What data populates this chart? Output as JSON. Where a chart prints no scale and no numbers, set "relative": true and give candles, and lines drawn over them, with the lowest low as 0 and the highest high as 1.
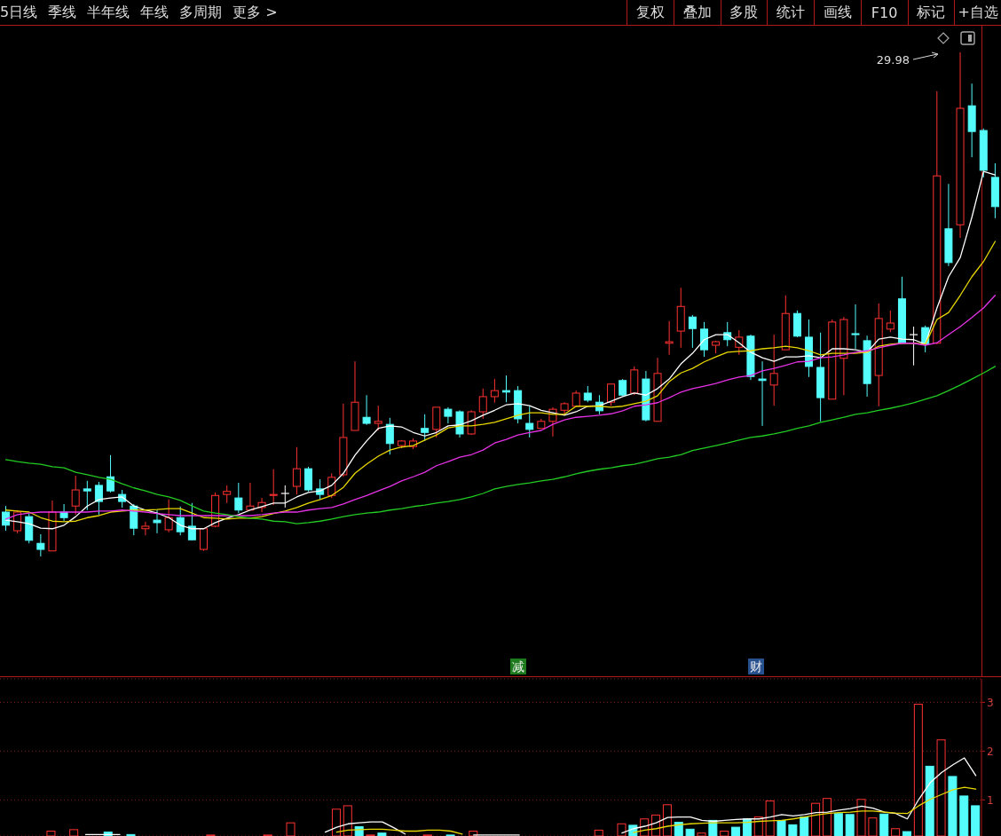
{
  "chart_data": [
    {
      "type": "other",
      "annotations": [
        "5日线",
        "季线",
        "半年线",
        "年线",
        "多周期",
        "更多 >",
        "复权",
        "叠加",
        "多股",
        "统计",
        "画线",
        "F10",
        "标记",
        "+自选"
      ]
    },
    {
      "type": "candlestick",
      "relative": true,
      "categories": [
        null,
        null,
        null,
        null,
        null,
        null,
        null,
        null,
        null,
        null,
        null,
        null,
        null,
        null,
        null,
        null,
        null,
        null,
        null,
        null,
        null,
        null,
        null,
        null,
        null,
        null,
        null,
        null,
        null,
        null,
        null,
        null,
        null,
        null,
        null,
        null,
        null,
        null,
        null,
        null,
        null,
        null,
        null,
        null,
        null,
        null,
        null,
        null,
        null,
        null,
        null,
        null,
        null,
        null,
        null,
        null,
        null,
        null,
        null,
        null,
        null,
        null,
        null,
        null,
        null,
        null,
        null,
        null,
        null,
        null,
        null,
        null,
        null,
        null,
        null,
        null,
        null,
        null,
        null,
        null,
        null,
        null,
        null,
        null,
        null,
        null
      ],
      "ohlc": [
        [
          0.088,
          0.1,
          0.051,
          0.062
        ],
        [
          0.051,
          0.092,
          0.046,
          0.088
        ],
        [
          0.079,
          0.085,
          0.026,
          0.032
        ],
        [
          0.026,
          0.044,
          0,
          0.014
        ],
        [
          0.011,
          0.111,
          0.011,
          0.088
        ],
        [
          0.088,
          0.104,
          0.07,
          0.077
        ],
        [
          0.1,
          0.16,
          0.083,
          0.132
        ],
        [
          0.134,
          0.15,
          0.092,
          0.13
        ],
        [
          0.141,
          0.148,
          0.083,
          0.109
        ],
        [
          0.158,
          0.201,
          0.127,
          0.13
        ],
        [
          0.123,
          0.132,
          0.097,
          0.109
        ],
        [
          0.1,
          0.104,
          0.042,
          0.056
        ],
        [
          0.055,
          0.069,
          0.042,
          0.06
        ],
        [
          0.072,
          0.092,
          0.046,
          0.067
        ],
        [
          0.053,
          0.113,
          0.048,
          0.077
        ],
        [
          0.077,
          0.099,
          0.042,
          0.049
        ],
        [
          0.06,
          0.106,
          0.032,
          0.033
        ],
        [
          0.014,
          0.055,
          0.011,
          0.055
        ],
        [
          0.06,
          0.127,
          0.058,
          0.121
        ],
        [
          0.123,
          0.141,
          0.106,
          0.129
        ],
        [
          0.116,
          0.146,
          0.086,
          0.092
        ],
        [
          0.092,
          0.146,
          0.092,
          0.1
        ],
        [
          0.097,
          0.116,
          0.088,
          0.107
        ],
        [
          0.121,
          0.173,
          0.102,
          0.123
        ],
        [
          0.125,
          0.141,
          0.097,
          0.125
        ],
        [
          0.139,
          0.217,
          0.123,
          0.174
        ],
        [
          0.174,
          0.178,
          0.129,
          0.132
        ],
        [
          0.134,
          0.153,
          0.113,
          0.123
        ],
        [
          0.121,
          0.165,
          0.116,
          0.157
        ],
        [
          0.162,
          0.303,
          0.158,
          0.236
        ],
        [
          0.25,
          0.387,
          0.25,
          0.306
        ],
        [
          0.276,
          0.32,
          0.261,
          0.264
        ],
        [
          0.264,
          0.299,
          0.25,
          0.268
        ],
        [
          0.262,
          0.275,
          0.202,
          0.224
        ],
        [
          0.22,
          0.231,
          0.215,
          0.229
        ],
        [
          0.218,
          0.234,
          0.213,
          0.229
        ],
        [
          0.254,
          0.282,
          0.229,
          0.246
        ],
        [
          0.252,
          0.296,
          0.236,
          0.296
        ],
        [
          0.292,
          0.296,
          0.264,
          0.278
        ],
        [
          0.287,
          0.29,
          0.236,
          0.243
        ],
        [
          0.243,
          0.29,
          0.241,
          0.287
        ],
        [
          0.287,
          0.333,
          0.273,
          0.317
        ],
        [
          0.317,
          0.352,
          0.305,
          0.329
        ],
        [
          0.329,
          0.359,
          0.306,
          0.326
        ],
        [
          0.329,
          0.338,
          0.264,
          0.273
        ],
        [
          0.264,
          0.298,
          0.236,
          0.252
        ],
        [
          0.254,
          0.273,
          0.254,
          0.268
        ],
        [
          0.268,
          0.296,
          0.238,
          0.292
        ],
        [
          0.29,
          0.306,
          0.28,
          0.303
        ],
        [
          0.298,
          0.329,
          0.298,
          0.324
        ],
        [
          0.324,
          0.338,
          0.306,
          0.31
        ],
        [
          0.306,
          0.32,
          0.282,
          0.289
        ],
        [
          0.306,
          0.342,
          0.299,
          0.342
        ],
        [
          0.349,
          0.352,
          0.319,
          0.32
        ],
        [
          0.324,
          0.377,
          0.32,
          0.37
        ],
        [
          0.352,
          0.368,
          0.268,
          0.271
        ],
        [
          0.268,
          0.394,
          0.268,
          0.363
        ],
        [
          0.423,
          0.467,
          0.4,
          0.426
        ],
        [
          0.447,
          0.533,
          0.414,
          0.496
        ],
        [
          0.475,
          0.479,
          0.414,
          0.452
        ],
        [
          0.451,
          0.465,
          0.396,
          0.41
        ],
        [
          0.419,
          0.428,
          0.403,
          0.426
        ],
        [
          0.444,
          0.465,
          0.417,
          0.43
        ],
        [
          0.415,
          0.449,
          0.4,
          0.435
        ],
        [
          0.437,
          0.44,
          0.35,
          0.357
        ],
        [
          0.352,
          0.387,
          0.259,
          0.349
        ],
        [
          0.34,
          0.44,
          0.299,
          0.363
        ],
        [
          0.41,
          0.518,
          0.41,
          0.482
        ],
        [
          0.482,
          0.488,
          0.435,
          0.437
        ],
        [
          0.435,
          0.47,
          0.356,
          0.377
        ],
        [
          0.375,
          0.444,
          0.268,
          0.315
        ],
        [
          0.312,
          0.47,
          0.312,
          0.465
        ],
        [
          0.393,
          0.475,
          0.32,
          0.47
        ],
        [
          0.442,
          0.5,
          0.412,
          0.44
        ],
        [
          0.428,
          0.438,
          0.317,
          0.343
        ],
        [
          0.359,
          0.502,
          0.298,
          0.472
        ],
        [
          0.451,
          0.488,
          0.445,
          0.463
        ],
        [
          0.511,
          0.555,
          0.423,
          0.423
        ],
        [
          0.44,
          0.456,
          0.379,
          0.44
        ],
        [
          0.454,
          0.458,
          0.405,
          0.421
        ],
        [
          0.423,
          0.923,
          0.421,
          0.755
        ],
        [
          0.65,
          0.739,
          0.576,
          0.583
        ],
        [
          0.658,
          1,
          0.632,
          0.889
        ],
        [
          0.894,
          0.938,
          0.792,
          0.843
        ],
        [
          0.845,
          0.849,
          0.752,
          0.766
        ],
        [
          0.752,
          0.78,
          0.671,
          0.694
        ]
      ],
      "colors": [
        "#54fcfc",
        "#ff3232",
        "#54fcfc",
        "#54fcfc",
        "#ff3232",
        "#54fcfc",
        "#ff3232",
        "#54fcfc",
        "#54fcfc",
        "#54fcfc",
        "#54fcfc",
        "#54fcfc",
        "#ff3232",
        "#54fcfc",
        "#ff3232",
        "#54fcfc",
        "#54fcfc",
        "#ff3232",
        "#ff3232",
        "#ff3232",
        "#54fcfc",
        "#ff3232",
        "#ff3232",
        "#ff3232",
        "#ffffff",
        "#ff3232",
        "#54fcfc",
        "#54fcfc",
        "#ff3232",
        "#ff3232",
        "#ff3232",
        "#54fcfc",
        "#ff3232",
        "#54fcfc",
        "#ff3232",
        "#ff3232",
        "#54fcfc",
        "#ff3232",
        "#54fcfc",
        "#54fcfc",
        "#ff3232",
        "#ff3232",
        "#ff3232",
        "#54fcfc",
        "#54fcfc",
        "#54fcfc",
        "#ff3232",
        "#ff3232",
        "#ff3232",
        "#ff3232",
        "#54fcfc",
        "#54fcfc",
        "#ff3232",
        "#54fcfc",
        "#ff3232",
        "#54fcfc",
        "#ff3232",
        "#ff3232",
        "#ff3232",
        "#54fcfc",
        "#54fcfc",
        "#ff3232",
        "#54fcfc",
        "#ff3232",
        "#54fcfc",
        "#54fcfc",
        "#ff3232",
        "#ff3232",
        "#54fcfc",
        "#54fcfc",
        "#54fcfc",
        "#ff3232",
        "#ff3232",
        "#54fcfc",
        "#54fcfc",
        "#ff3232",
        "#ff3232",
        "#54fcfc",
        "#ffffff",
        "#54fcfc",
        "#ff3232",
        "#54fcfc",
        "#ff3232",
        "#54fcfc",
        "#54fcfc",
        "#54fcfc"
      ],
      "series": [
        {
          "type": "line",
          "color": "#ffffff",
          "values": [
            0.072,
            0.069,
            0.065,
            0.056,
            0.055,
            0.062,
            0.079,
            0.1,
            0.113,
            0.116,
            0.118,
            0.1,
            0.092,
            0.086,
            0.077,
            0.062,
            0.055,
            0.055,
            0.067,
            0.076,
            0.083,
            0.092,
            0.099,
            0.106,
            0.106,
            0.118,
            0.127,
            0.13,
            0.141,
            0.165,
            0.201,
            0.229,
            0.254,
            0.259,
            0.257,
            0.246,
            0.239,
            0.246,
            0.259,
            0.261,
            0.269,
            0.28,
            0.29,
            0.301,
            0.303,
            0.299,
            0.29,
            0.285,
            0.28,
            0.287,
            0.298,
            0.299,
            0.308,
            0.317,
            0.324,
            0.32,
            0.333,
            0.352,
            0.382,
            0.403,
            0.43,
            0.44,
            0.44,
            0.424,
            0.405,
            0.394,
            0.387,
            0.396,
            0.396,
            0.398,
            0.394,
            0.412,
            0.412,
            0.41,
            0.405,
            0.431,
            0.435,
            0.431,
            0.43,
            0.421,
            0.493,
            0.555,
            0.593,
            0.673,
            0.764,
            0.757
          ]
        },
        {
          "type": "line",
          "color": "#e8d800",
          "values": [
            0.092,
            0.09,
            0.088,
            0.077,
            0.07,
            0.069,
            0.07,
            0.077,
            0.081,
            0.088,
            0.09,
            0.092,
            0.092,
            0.093,
            0.095,
            0.095,
            0.086,
            0.077,
            0.076,
            0.074,
            0.076,
            0.076,
            0.079,
            0.085,
            0.09,
            0.097,
            0.106,
            0.113,
            0.121,
            0.137,
            0.165,
            0.183,
            0.199,
            0.211,
            0.217,
            0.22,
            0.231,
            0.241,
            0.255,
            0.259,
            0.259,
            0.262,
            0.266,
            0.273,
            0.28,
            0.285,
            0.285,
            0.282,
            0.282,
            0.298,
            0.298,
            0.298,
            0.296,
            0.298,
            0.303,
            0.308,
            0.319,
            0.347,
            0.364,
            0.373,
            0.386,
            0.396,
            0.405,
            0.407,
            0.408,
            0.412,
            0.414,
            0.417,
            0.414,
            0.408,
            0.4,
            0.403,
            0.403,
            0.403,
            0.405,
            0.417,
            0.421,
            0.423,
            0.423,
            0.421,
            0.47,
            0.484,
            0.518,
            0.555,
            0.585,
            0.625
          ]
        },
        {
          "type": "line",
          "color": "#e632e6",
          "values": [
            0.074,
            0.083,
            0.086,
            0.088,
            0.088,
            0.088,
            0.088,
            0.088,
            0.09,
            0.09,
            0.092,
            0.09,
            0.088,
            0.085,
            0.083,
            0.081,
            0.081,
            0.081,
            0.081,
            0.081,
            0.081,
            0.081,
            0.083,
            0.086,
            0.088,
            0.088,
            0.092,
            0.095,
            0.097,
            0.104,
            0.113,
            0.121,
            0.13,
            0.139,
            0.15,
            0.158,
            0.167,
            0.18,
            0.188,
            0.197,
            0.202,
            0.211,
            0.225,
            0.232,
            0.241,
            0.246,
            0.25,
            0.262,
            0.271,
            0.276,
            0.278,
            0.28,
            0.283,
            0.289,
            0.298,
            0.301,
            0.305,
            0.315,
            0.326,
            0.333,
            0.338,
            0.343,
            0.35,
            0.356,
            0.359,
            0.368,
            0.373,
            0.379,
            0.386,
            0.387,
            0.394,
            0.396,
            0.4,
            0.405,
            0.408,
            0.414,
            0.419,
            0.423,
            0.423,
            0.419,
            0.424,
            0.44,
            0.456,
            0.474,
            0.493,
            0.518
          ]
        },
        {
          "type": "line",
          "color": "#22cc22",
          "values": [
            0.192,
            0.188,
            0.185,
            0.183,
            0.178,
            0.176,
            0.167,
            0.162,
            0.157,
            0.153,
            0.144,
            0.136,
            0.13,
            0.123,
            0.118,
            0.111,
            0.1,
            0.09,
            0.086,
            0.083,
            0.079,
            0.076,
            0.074,
            0.07,
            0.069,
            0.065,
            0.067,
            0.07,
            0.074,
            0.079,
            0.083,
            0.086,
            0.088,
            0.092,
            0.095,
            0.099,
            0.102,
            0.106,
            0.109,
            0.113,
            0.118,
            0.125,
            0.134,
            0.139,
            0.143,
            0.146,
            0.15,
            0.153,
            0.158,
            0.164,
            0.169,
            0.173,
            0.176,
            0.18,
            0.183,
            0.188,
            0.194,
            0.197,
            0.202,
            0.21,
            0.215,
            0.22,
            0.225,
            0.231,
            0.236,
            0.239,
            0.243,
            0.248,
            0.254,
            0.259,
            0.266,
            0.271,
            0.276,
            0.282,
            0.285,
            0.29,
            0.294,
            0.299,
            0.305,
            0.312,
            0.319,
            0.329,
            0.34,
            0.352,
            0.364,
            0.377
          ]
        }
      ],
      "annotations": [
        "29.98",
        "减",
        "财"
      ]
    },
    {
      "type": "bar",
      "grid": "y",
      "ylim": [
        0.26,
        3.48
      ],
      "yticks": [
        1,
        2,
        3
      ],
      "categories": [
        null,
        null,
        null,
        null,
        null,
        null,
        null,
        null,
        null,
        null,
        null,
        null,
        null,
        null,
        null,
        null,
        null,
        null,
        null,
        null,
        null,
        null,
        null,
        null,
        null,
        null,
        null,
        null,
        null,
        null,
        null,
        null,
        null,
        null,
        null,
        null,
        null,
        null,
        null,
        null,
        null,
        null,
        null,
        null,
        null,
        null,
        null,
        null,
        null,
        null,
        null,
        null,
        null,
        null,
        null,
        null,
        null,
        null,
        null,
        null,
        null,
        null,
        null,
        null,
        null,
        null,
        null,
        null,
        null,
        null,
        null,
        null,
        null,
        null,
        null,
        null,
        null,
        null,
        null,
        null,
        null,
        null,
        null,
        null,
        null,
        null
      ],
      "series": [
        {
          "values": [
            null,
            null,
            null,
            null,
            0.36,
            null,
            0.39,
            null,
            null,
            0.34,
            null,
            0.29,
            null,
            null,
            null,
            null,
            null,
            null,
            0.28,
            null,
            null,
            null,
            null,
            0.28,
            null,
            0.53,
            null,
            null,
            null,
            0.81,
            0.88,
            0.45,
            0.28,
            0.32,
            null,
            null,
            null,
            0.28,
            null,
            0.28,
            null,
            0.36,
            null,
            null,
            null,
            null,
            null,
            null,
            null,
            null,
            null,
            null,
            0.38,
            null,
            0.51,
            0.48,
            0.61,
            0.69,
            0.9,
            0.54,
            0.4,
            0.32,
            0.58,
            0.36,
            0.44,
            0.61,
            0.65,
            0.98,
            0.58,
            0.49,
            0.65,
            0.93,
            1.03,
            0.72,
            0.7,
            1.01,
            0.63,
            0.71,
            0.41,
            0.35,
            2.96,
            1.69,
            2.23,
            1.48,
            1.08,
            0.88
          ],
          "colors": [
            null,
            null,
            null,
            null,
            "#ff3232",
            null,
            "#ff3232",
            null,
            null,
            "#54fcfc",
            null,
            "#54fcfc",
            null,
            null,
            null,
            null,
            null,
            null,
            "#ff3232",
            null,
            null,
            null,
            null,
            "#ff3232",
            null,
            "#ff3232",
            null,
            null,
            null,
            "#ff3232",
            "#ff3232",
            "#54fcfc",
            "#ff3232",
            "#54fcfc",
            null,
            null,
            null,
            "#ff3232",
            null,
            "#54fcfc",
            null,
            "#ff3232",
            null,
            null,
            null,
            null,
            null,
            null,
            null,
            null,
            null,
            null,
            "#ff3232",
            null,
            "#ff3232",
            "#54fcfc",
            "#ff3232",
            "#ff3232",
            "#ff3232",
            "#54fcfc",
            "#54fcfc",
            "#ff3232",
            "#54fcfc",
            "#ff3232",
            "#54fcfc",
            "#54fcfc",
            "#ff3232",
            "#ff3232",
            "#54fcfc",
            "#54fcfc",
            "#54fcfc",
            "#ff3232",
            "#ff3232",
            "#54fcfc",
            "#54fcfc",
            "#ff3232",
            "#ff3232",
            "#54fcfc",
            "#ff3232",
            "#54fcfc",
            "#ff3232",
            "#54fcfc",
            "#ff3232",
            "#54fcfc",
            "#54fcfc",
            "#54fcfc"
          ]
        },
        {
          "type": "line",
          "color": "#ffffff",
          "values": [
            null,
            null,
            null,
            null,
            null,
            null,
            null,
            0.29,
            0.29,
            0.29,
            0.29,
            null,
            null,
            null,
            null,
            null,
            null,
            null,
            null,
            null,
            null,
            null,
            null,
            null,
            null,
            null,
            null,
            null,
            0.34,
            0.44,
            0.51,
            0.53,
            0.55,
            0.55,
            0.43,
            0.3,
            null,
            null,
            null,
            null,
            null,
            0.28,
            0.28,
            0.28,
            0.28,
            0.28,
            null,
            null,
            null,
            null,
            null,
            null,
            null,
            null,
            0.32,
            0.41,
            0.46,
            0.53,
            0.64,
            0.65,
            0.65,
            0.58,
            0.56,
            0.58,
            0.6,
            0.61,
            0.61,
            0.65,
            0.7,
            0.67,
            0.7,
            0.74,
            0.75,
            0.79,
            0.82,
            0.87,
            0.83,
            0.75,
            0.72,
            0.61,
            1.01,
            1.35,
            1.56,
            1.72,
            1.86,
            1.5
          ]
        },
        {
          "type": "line",
          "color": "#e8d800",
          "values": [
            null,
            null,
            null,
            null,
            null,
            null,
            null,
            null,
            null,
            null,
            null,
            null,
            null,
            null,
            null,
            null,
            null,
            null,
            null,
            null,
            null,
            null,
            null,
            null,
            null,
            null,
            null,
            null,
            null,
            0.34,
            0.38,
            0.39,
            0.4,
            0.4,
            0.38,
            0.36,
            0.36,
            0.38,
            0.38,
            0.36,
            0.3,
            null,
            null,
            null,
            null,
            null,
            null,
            null,
            null,
            null,
            null,
            null,
            null,
            null,
            null,
            0.33,
            0.38,
            0.41,
            0.46,
            0.49,
            0.51,
            0.52,
            0.53,
            0.53,
            0.53,
            0.54,
            0.56,
            0.57,
            0.58,
            0.61,
            0.65,
            0.69,
            0.72,
            0.74,
            0.75,
            0.77,
            0.77,
            0.75,
            0.73,
            0.72,
            0.88,
            1.01,
            1.11,
            1.21,
            1.26,
            1.22
          ]
        }
      ]
    }
  ]
}
